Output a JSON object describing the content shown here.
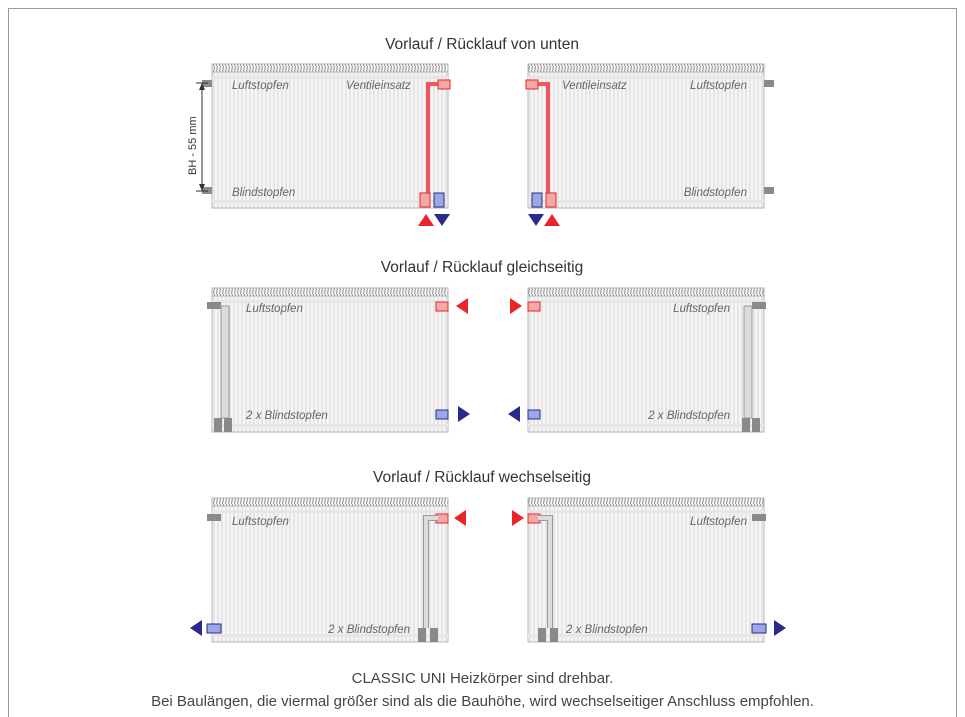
{
  "sections": [
    {
      "title": "Vorlauf / Rücklauf von unten",
      "left": {
        "top_left_label": "Luftstopfen",
        "top_right_label": "Ventileinsatz",
        "bottom_label": "Blindstopfen"
      },
      "right": {
        "top_left_label": "Ventileinsatz",
        "top_right_label": "Luftstopfen",
        "bottom_label": "Blindstopfen"
      },
      "dimension_label": "BH - 55 mm"
    },
    {
      "title": "Vorlauf / Rücklauf gleichseitig",
      "left": {
        "top_label": "Luftstopfen",
        "bottom_label": "2 x Blindstopfen"
      },
      "right": {
        "top_label": "Luftstopfen",
        "bottom_label": "2 x Blindstopfen"
      }
    },
    {
      "title": "Vorlauf / Rücklauf wechselseitig",
      "left": {
        "top_label": "Luftstopfen",
        "bottom_label": "2 x Blindstopfen"
      },
      "right": {
        "top_label": "Luftstopfen",
        "bottom_label": "2 x Blindstopfen"
      }
    }
  ],
  "footer": {
    "line1": "CLASSIC UNI  Heizkörper sind drehbar.",
    "line2": "Bei Baulängen, die viermal größer sind als die Bauhöhe, wird wechselseitiger Anschluss empfohlen."
  },
  "colors": {
    "supply": "#e8262a",
    "return": "#2a2a8c",
    "pipe": "#8a8a8a",
    "outline": "#9a9a9a"
  }
}
